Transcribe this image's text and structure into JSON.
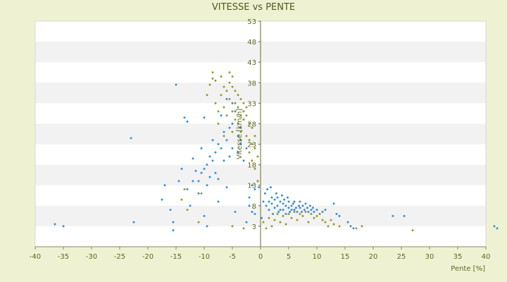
{
  "chart_data": {
    "type": "scatter",
    "title": "VITESSE vs PENTE",
    "xlabel": "Pente [%]",
    "ylabel": "Vitesse [km/h]",
    "xlim": [
      -40,
      40
    ],
    "ylim": [
      -2,
      53
    ],
    "x_ticks": [
      -40,
      -35,
      -30,
      -25,
      -20,
      -15,
      -10,
      -5,
      0,
      5,
      10,
      15,
      20,
      25,
      30,
      35,
      40
    ],
    "y_ticks": [
      3,
      8,
      13,
      18,
      23,
      28,
      33,
      38,
      43,
      48,
      53
    ],
    "y_axis_position": "at x=0",
    "grid": "alternating horizontal bands",
    "legend": "none",
    "colors": {
      "series_1": "#3a8fd6",
      "series_2": "#9a9a2a",
      "band": "#f2f2f2",
      "plot_bg": "#ffffff",
      "page_bg": "#eef2d2"
    },
    "series": [
      {
        "color": "#3a8fd6",
        "points": [
          [
            -36.5,
            3.5
          ],
          [
            -35,
            3
          ],
          [
            -22.5,
            4
          ],
          [
            -23,
            24.5
          ],
          [
            -17.5,
            9.5
          ],
          [
            -17,
            13
          ],
          [
            -16,
            7
          ],
          [
            -15.5,
            4
          ],
          [
            -15.5,
            2
          ],
          [
            -15,
            37.5
          ],
          [
            -14.5,
            14
          ],
          [
            -14,
            17
          ],
          [
            -13.5,
            29.5
          ],
          [
            -13,
            28.5
          ],
          [
            -13,
            12
          ],
          [
            -12.5,
            8
          ],
          [
            -12,
            14
          ],
          [
            -12,
            19.5
          ],
          [
            -11.5,
            16.5
          ],
          [
            -11,
            11
          ],
          [
            -11,
            14
          ],
          [
            -10.5,
            22
          ],
          [
            -10.5,
            16
          ],
          [
            -10,
            17
          ],
          [
            -10,
            29.5
          ],
          [
            -10,
            5.5
          ],
          [
            -9.5,
            3
          ],
          [
            -9.5,
            13
          ],
          [
            -9.5,
            18
          ],
          [
            -9,
            20
          ],
          [
            -9,
            15
          ],
          [
            -8.5,
            24
          ],
          [
            -8.5,
            19
          ],
          [
            -8,
            16
          ],
          [
            -8,
            21
          ],
          [
            -7.5,
            23
          ],
          [
            -7.5,
            9
          ],
          [
            -7.5,
            14.5
          ],
          [
            -7,
            22
          ],
          [
            -7,
            30
          ],
          [
            -6.5,
            26
          ],
          [
            -6.5,
            19
          ],
          [
            -6,
            12.5
          ],
          [
            -6,
            24
          ],
          [
            -6,
            34
          ],
          [
            -5.5,
            27
          ],
          [
            -5.5,
            20
          ],
          [
            -5,
            33
          ],
          [
            -5,
            28
          ],
          [
            -5,
            22
          ],
          [
            -4.5,
            31
          ],
          [
            -4.5,
            6.5
          ],
          [
            -4,
            25
          ],
          [
            -4,
            21
          ],
          [
            -3.5,
            24
          ],
          [
            -3.5,
            27
          ],
          [
            -3.5,
            23
          ],
          [
            -3,
            29
          ],
          [
            -3,
            19
          ],
          [
            -2.5,
            22
          ],
          [
            -2.5,
            4
          ],
          [
            -2,
            10
          ],
          [
            -2,
            8
          ],
          [
            -1.5,
            6.5
          ],
          [
            -1.5,
            13
          ],
          [
            -1,
            6
          ],
          [
            -1,
            12
          ],
          [
            -0.5,
            14
          ],
          [
            -0.3,
            12.5
          ],
          [
            0.2,
            5
          ],
          [
            0.5,
            9
          ],
          [
            0.8,
            11
          ],
          [
            1,
            8
          ],
          [
            1.2,
            12
          ],
          [
            1.5,
            9
          ],
          [
            1.5,
            7
          ],
          [
            1.8,
            12.5
          ],
          [
            2,
            10
          ],
          [
            2,
            8.5
          ],
          [
            2.2,
            6
          ],
          [
            2.5,
            9.5
          ],
          [
            2.5,
            7.5
          ],
          [
            2.8,
            11
          ],
          [
            3,
            8
          ],
          [
            3,
            10
          ],
          [
            3.2,
            6.5
          ],
          [
            3.5,
            9
          ],
          [
            3.5,
            7
          ],
          [
            3.8,
            10.5
          ],
          [
            4,
            8.5
          ],
          [
            4,
            7
          ],
          [
            4.2,
            9.5
          ],
          [
            4.5,
            8
          ],
          [
            4.5,
            6
          ],
          [
            4.8,
            10
          ],
          [
            5,
            7.5
          ],
          [
            5,
            9
          ],
          [
            5.2,
            6.5
          ],
          [
            5.5,
            8
          ],
          [
            5.5,
            7
          ],
          [
            5.8,
            8.5
          ],
          [
            6,
            7
          ],
          [
            6,
            9
          ],
          [
            6.3,
            7.5
          ],
          [
            6.5,
            6.5
          ],
          [
            6.8,
            8
          ],
          [
            7,
            7.5
          ],
          [
            7,
            9
          ],
          [
            7.3,
            6.5
          ],
          [
            7.5,
            8
          ],
          [
            7.8,
            7
          ],
          [
            8,
            8.5
          ],
          [
            8.3,
            7.5
          ],
          [
            8.5,
            6.5
          ],
          [
            8.8,
            8
          ],
          [
            9,
            7
          ],
          [
            9.3,
            7.5
          ],
          [
            9.5,
            6.5
          ],
          [
            10,
            7
          ],
          [
            10.5,
            6
          ],
          [
            11,
            6.5
          ],
          [
            11.5,
            7
          ],
          [
            13,
            8.5
          ],
          [
            13.5,
            6
          ],
          [
            14,
            5.5
          ],
          [
            15.5,
            4
          ],
          [
            16,
            3
          ],
          [
            16.5,
            2.5
          ],
          [
            23.5,
            5.5
          ],
          [
            25.5,
            5.5
          ],
          [
            41.5,
            3
          ],
          [
            42,
            2.5
          ]
        ]
      },
      {
        "color": "#9a9a2a",
        "points": [
          [
            -14,
            9.5
          ],
          [
            -13.5,
            12
          ],
          [
            -13,
            7
          ],
          [
            -11,
            4
          ],
          [
            -10.5,
            11
          ],
          [
            -9.5,
            35
          ],
          [
            -9,
            37.5
          ],
          [
            -8.5,
            40.5
          ],
          [
            -8.5,
            39
          ],
          [
            -8,
            38.5
          ],
          [
            -8,
            33
          ],
          [
            -7.5,
            31
          ],
          [
            -7.5,
            28
          ],
          [
            -7,
            39.5
          ],
          [
            -7,
            35
          ],
          [
            -6.5,
            37
          ],
          [
            -6.5,
            32
          ],
          [
            -6.5,
            25
          ],
          [
            -6,
            36
          ],
          [
            -6,
            30
          ],
          [
            -5.5,
            40.5
          ],
          [
            -5.5,
            38
          ],
          [
            -5.5,
            34
          ],
          [
            -5,
            39.5
          ],
          [
            -5,
            37
          ],
          [
            -5,
            31
          ],
          [
            -5,
            26
          ],
          [
            -4.5,
            36
          ],
          [
            -4.5,
            33
          ],
          [
            -4.5,
            29
          ],
          [
            -4,
            35
          ],
          [
            -4,
            32
          ],
          [
            -4,
            28
          ],
          [
            -3.5,
            34
          ],
          [
            -3.5,
            30
          ],
          [
            -3.5,
            26
          ],
          [
            -3,
            33
          ],
          [
            -3,
            31
          ],
          [
            -3,
            29
          ],
          [
            -2.5,
            32
          ],
          [
            -2.5,
            30
          ],
          [
            -2.5,
            25
          ],
          [
            -2,
            28
          ],
          [
            -2,
            24
          ],
          [
            -2,
            21
          ],
          [
            -1.5,
            27
          ],
          [
            -1.5,
            23
          ],
          [
            -1.5,
            19
          ],
          [
            -1,
            25
          ],
          [
            -1,
            22
          ],
          [
            -1,
            17
          ],
          [
            -0.5,
            20
          ],
          [
            -0.5,
            14
          ],
          [
            -5,
            3
          ],
          [
            -3,
            2.5
          ],
          [
            0.5,
            4
          ],
          [
            1,
            2.5
          ],
          [
            1.5,
            5
          ],
          [
            2,
            3
          ],
          [
            2.5,
            4.5
          ],
          [
            3,
            6
          ],
          [
            3.5,
            4
          ],
          [
            4,
            5.5
          ],
          [
            4.5,
            3.5
          ],
          [
            5,
            6
          ],
          [
            5.5,
            5
          ],
          [
            6,
            6.5
          ],
          [
            6.5,
            4.5
          ],
          [
            7,
            6
          ],
          [
            7.5,
            5.5
          ],
          [
            8,
            6.5
          ],
          [
            8.5,
            4
          ],
          [
            9,
            6
          ],
          [
            9.5,
            5
          ],
          [
            10,
            5.5
          ],
          [
            10.5,
            6
          ],
          [
            11,
            4.5
          ],
          [
            11.5,
            4
          ],
          [
            12,
            3
          ],
          [
            12.5,
            4.5
          ],
          [
            13,
            3.5
          ],
          [
            14,
            3
          ],
          [
            17,
            2.5
          ],
          [
            18,
            3
          ],
          [
            27,
            2
          ]
        ]
      }
    ]
  }
}
